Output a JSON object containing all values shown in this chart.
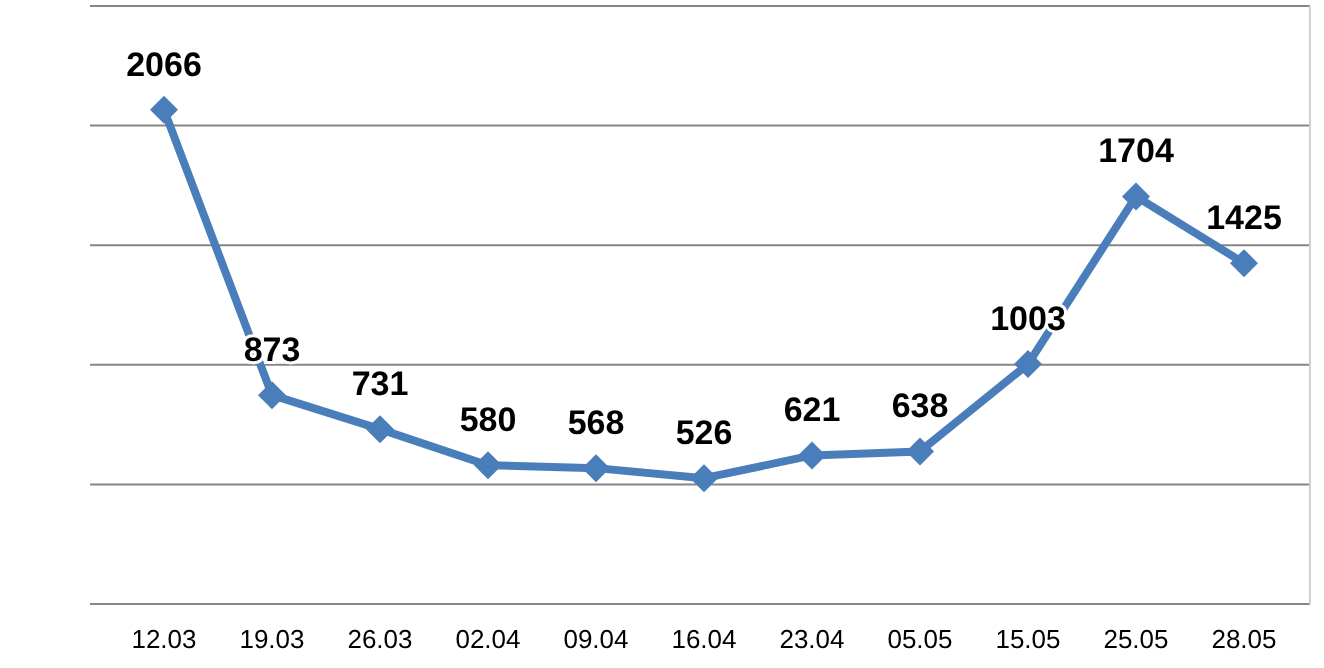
{
  "chart_data": {
    "type": "line",
    "categories": [
      "12.03",
      "19.03",
      "26.03",
      "02.04",
      "09.04",
      "16.04",
      "23.04",
      "05.05",
      "15.05",
      "25.05",
      "28.05"
    ],
    "series": [
      {
        "color": "#4a7ebb",
        "values": [
          2066,
          873,
          731,
          580,
          568,
          526,
          621,
          638,
          1003,
          1704,
          1425
        ]
      }
    ],
    "ylim": [
      0,
      2500
    ],
    "yticks": [
      {
        "value": 0,
        "label": null
      },
      {
        "value": 500,
        "label": null
      },
      {
        "value": 1000,
        "label": null
      },
      {
        "value": 1500,
        "label": null
      },
      {
        "value": 2000,
        "label": null
      },
      {
        "value": 2500,
        "label": null
      }
    ],
    "grid": "y",
    "tick_labels": "x",
    "marker": "diamond",
    "line_style": "solid",
    "data_labels": true
  }
}
